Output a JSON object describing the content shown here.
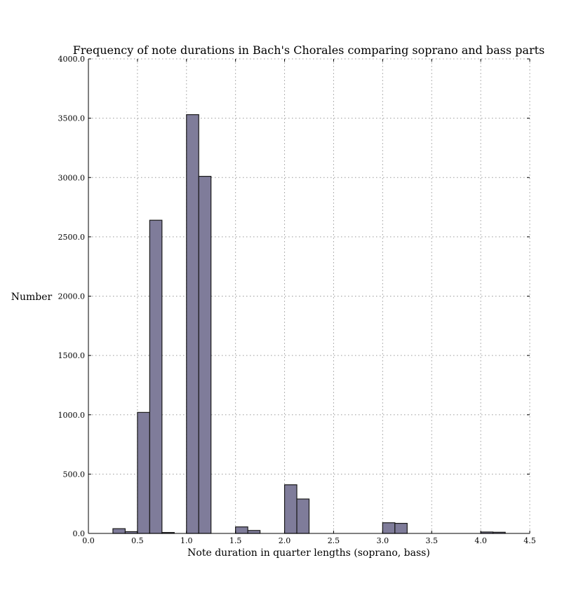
{
  "chart_data": {
    "type": "bar",
    "title": "Frequency of note durations in Bach's Chorales comparing soprano and bass parts",
    "xlabel": "Note duration in quarter lengths (soprano, bass)",
    "ylabel": "Number",
    "xlim": [
      0.0,
      4.5
    ],
    "ylim": [
      0,
      4000
    ],
    "xticks": [
      "0.0",
      "0.5",
      "1.0",
      "1.5",
      "2.0",
      "2.5",
      "3.0",
      "3.5",
      "4.0",
      "4.5"
    ],
    "yticks": [
      "0.0",
      "500.0",
      "1000.0",
      "1500.0",
      "2000.0",
      "2500.0",
      "3000.0",
      "3500.0",
      "4000.0"
    ],
    "grid": true,
    "series": [
      {
        "color": "#7f7c9a",
        "bars": [
          {
            "x0": 0.25,
            "x1": 0.375,
            "value": 40
          },
          {
            "x0": 0.375,
            "x1": 0.5,
            "value": 15
          },
          {
            "x0": 0.5,
            "x1": 0.625,
            "value": 1020
          },
          {
            "x0": 0.625,
            "x1": 0.75,
            "value": 2640
          },
          {
            "x0": 0.75,
            "x1": 0.875,
            "value": 8
          },
          {
            "x0": 1.0,
            "x1": 1.125,
            "value": 3530
          },
          {
            "x0": 1.125,
            "x1": 1.25,
            "value": 3010
          },
          {
            "x0": 1.5,
            "x1": 1.625,
            "value": 55
          },
          {
            "x0": 1.625,
            "x1": 1.75,
            "value": 25
          },
          {
            "x0": 2.0,
            "x1": 2.125,
            "value": 410
          },
          {
            "x0": 2.125,
            "x1": 2.25,
            "value": 290
          },
          {
            "x0": 3.0,
            "x1": 3.125,
            "value": 90
          },
          {
            "x0": 3.125,
            "x1": 3.25,
            "value": 85
          },
          {
            "x0": 4.0,
            "x1": 4.125,
            "value": 12
          },
          {
            "x0": 4.125,
            "x1": 4.25,
            "value": 10
          }
        ]
      }
    ]
  }
}
